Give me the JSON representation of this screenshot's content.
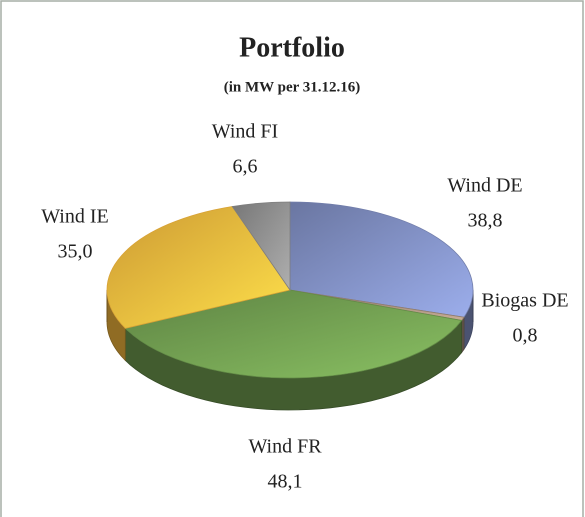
{
  "chart_data": {
    "type": "pie3d",
    "title": "Portfolio",
    "subtitle": "(in MW per 31.12.16)",
    "categories": [
      "Wind DE",
      "Biogas DE",
      "Wind FR",
      "Wind IE",
      "Wind FI"
    ],
    "values": [
      38.8,
      0.8,
      48.1,
      35.0,
      6.6
    ],
    "value_labels": [
      "38,8",
      "0,8",
      "48,1",
      "35,0",
      "6,6"
    ],
    "colors": [
      "#7d8bbd",
      "#a08a78",
      "#6e9a4f",
      "#f0b43c",
      "#8c8c8c"
    ]
  }
}
